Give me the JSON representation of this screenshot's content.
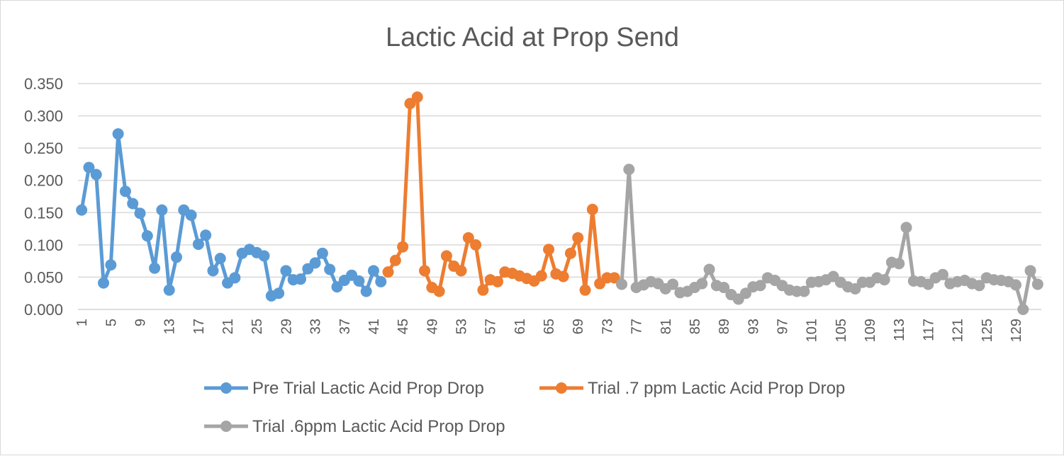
{
  "chart_data": {
    "type": "line",
    "title": "Lactic Acid at Prop Send",
    "xlabel": "",
    "ylabel": "",
    "ylim": [
      0,
      0.35
    ],
    "y_ticks": [
      "0.000",
      "0.050",
      "0.100",
      "0.150",
      "0.200",
      "0.250",
      "0.300",
      "0.350"
    ],
    "x_range": [
      1,
      132
    ],
    "x_tick_step": 4,
    "grid": "horizontal",
    "legend_position": "bottom",
    "series": [
      {
        "name": "Pre Trial Lactic Acid Prop Drop",
        "color": "#5B9BD5",
        "x_start": 1,
        "values": [
          0.154,
          0.22,
          0.209,
          0.041,
          0.069,
          0.272,
          0.183,
          0.164,
          0.149,
          0.114,
          0.064,
          0.154,
          0.03,
          0.081,
          0.154,
          0.146,
          0.101,
          0.115,
          0.06,
          0.079,
          0.041,
          0.049,
          0.087,
          0.093,
          0.088,
          0.083,
          0.021,
          0.025,
          0.06,
          0.046,
          0.047,
          0.063,
          0.072,
          0.087,
          0.062,
          0.035,
          0.045,
          0.053,
          0.044,
          0.028,
          0.06,
          0.043
        ]
      },
      {
        "name": "Trial .7 ppm Lactic Acid Prop Drop",
        "color": "#ED7D31",
        "x_start": 43,
        "values": [
          0.058,
          0.076,
          0.097,
          0.319,
          0.329,
          0.06,
          0.034,
          0.028,
          0.083,
          0.067,
          0.06,
          0.111,
          0.1,
          0.03,
          0.046,
          0.043,
          0.058,
          0.056,
          0.052,
          0.048,
          0.044,
          0.052,
          0.093,
          0.055,
          0.051,
          0.087,
          0.111,
          0.03,
          0.155,
          0.04,
          0.049,
          0.049
        ]
      },
      {
        "name": "Trial .6ppm Lactic Acid Prop Drop",
        "color": "#A5A5A5",
        "x_start": 75,
        "values": [
          0.039,
          0.217,
          0.034,
          0.038,
          0.043,
          0.04,
          0.032,
          0.039,
          0.026,
          0.028,
          0.034,
          0.04,
          0.062,
          0.037,
          0.034,
          0.023,
          0.016,
          0.025,
          0.035,
          0.037,
          0.049,
          0.045,
          0.037,
          0.03,
          0.028,
          0.028,
          0.042,
          0.043,
          0.046,
          0.051,
          0.042,
          0.035,
          0.032,
          0.042,
          0.042,
          0.049,
          0.046,
          0.073,
          0.071,
          0.127,
          0.044,
          0.043,
          0.039,
          0.049,
          0.054,
          0.04,
          0.043,
          0.045,
          0.04,
          0.037,
          0.049,
          0.046,
          0.045,
          0.043,
          0.038,
          0.0,
          0.06,
          0.039
        ]
      }
    ]
  }
}
